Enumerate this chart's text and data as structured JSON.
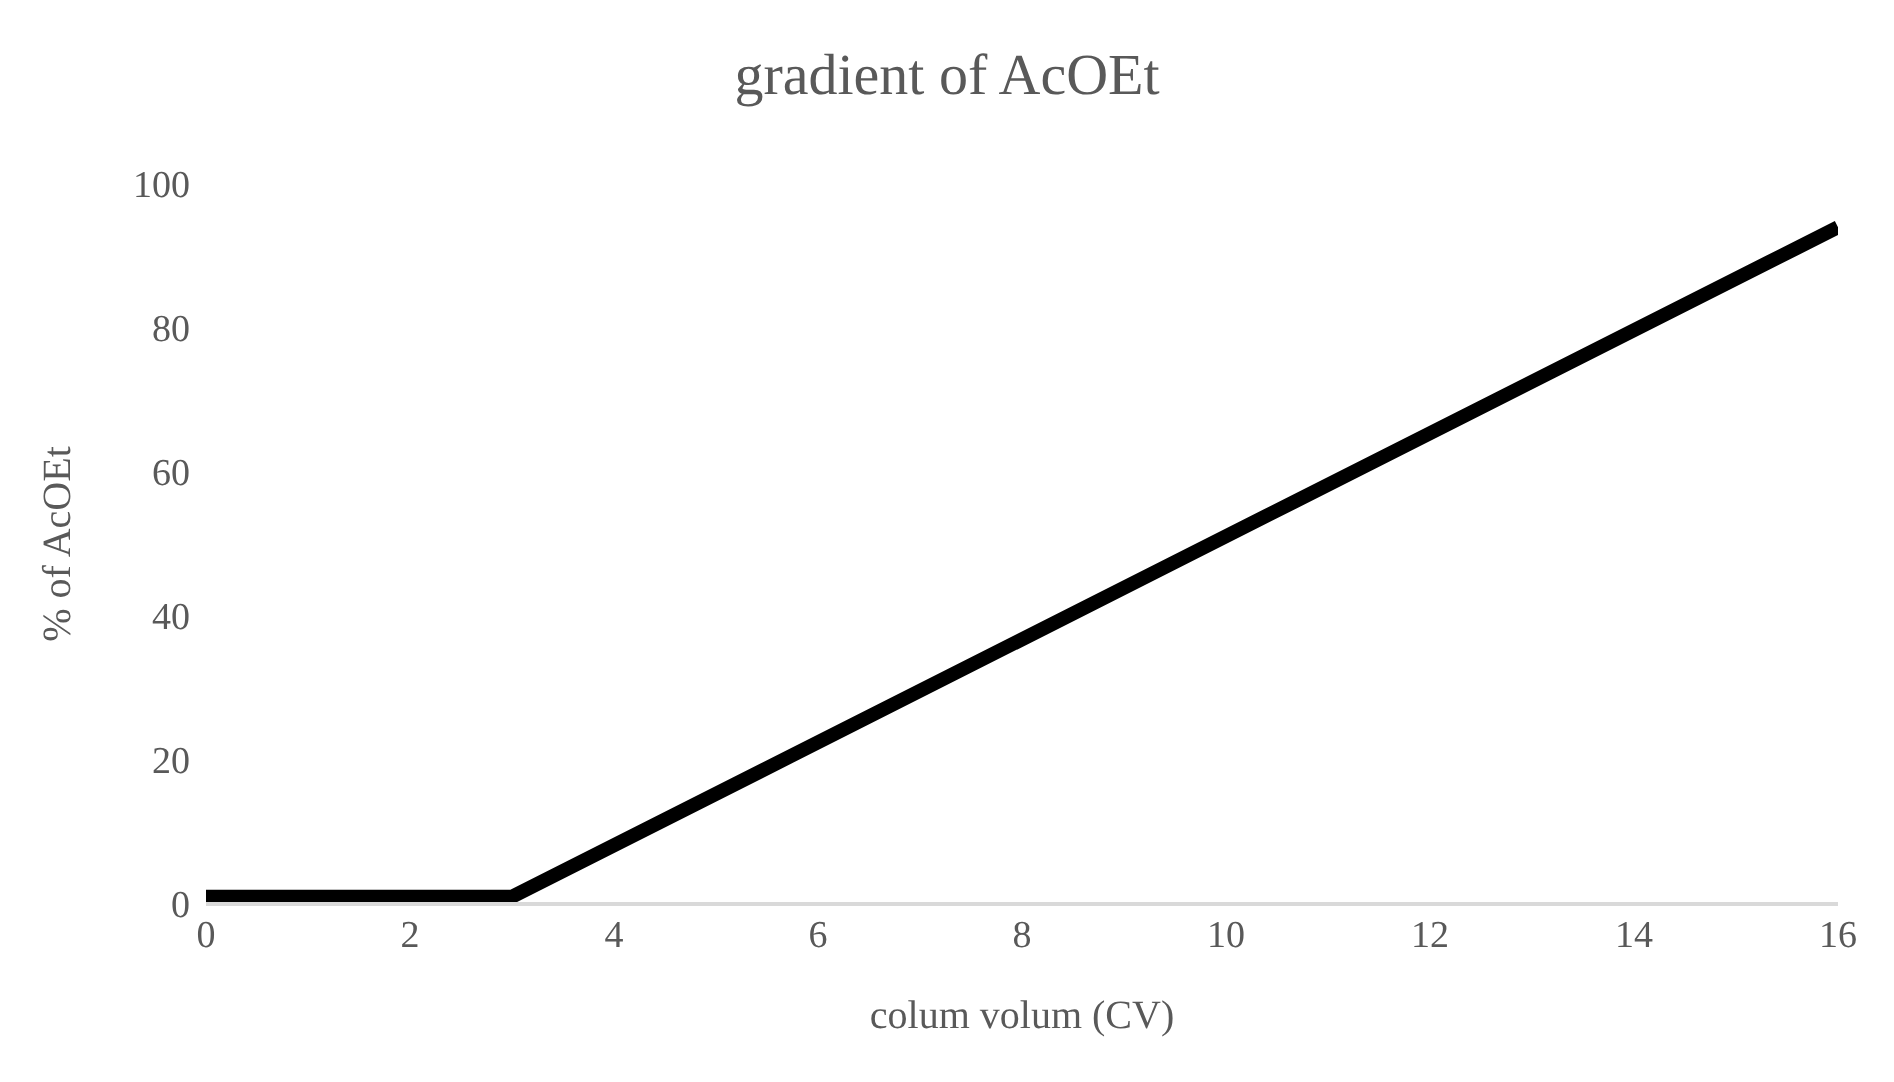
{
  "chart_data": {
    "type": "line",
    "title": "gradient of AcOEt",
    "xlabel": "colum volum (CV)",
    "ylabel": "% of AcOEt",
    "x": [
      0,
      3,
      16
    ],
    "series": [
      {
        "color": "#000000",
        "values": [
          1,
          1,
          94
        ]
      }
    ],
    "xlim": [
      0,
      16
    ],
    "xticks": [
      0,
      2,
      4,
      6,
      8,
      10,
      12,
      14,
      16
    ],
    "ylim": [
      0,
      100
    ],
    "yticks": [
      0,
      20,
      40,
      60,
      80,
      100
    ],
    "grid": false,
    "legend": false,
    "marker": "none",
    "line_style": "solid"
  }
}
